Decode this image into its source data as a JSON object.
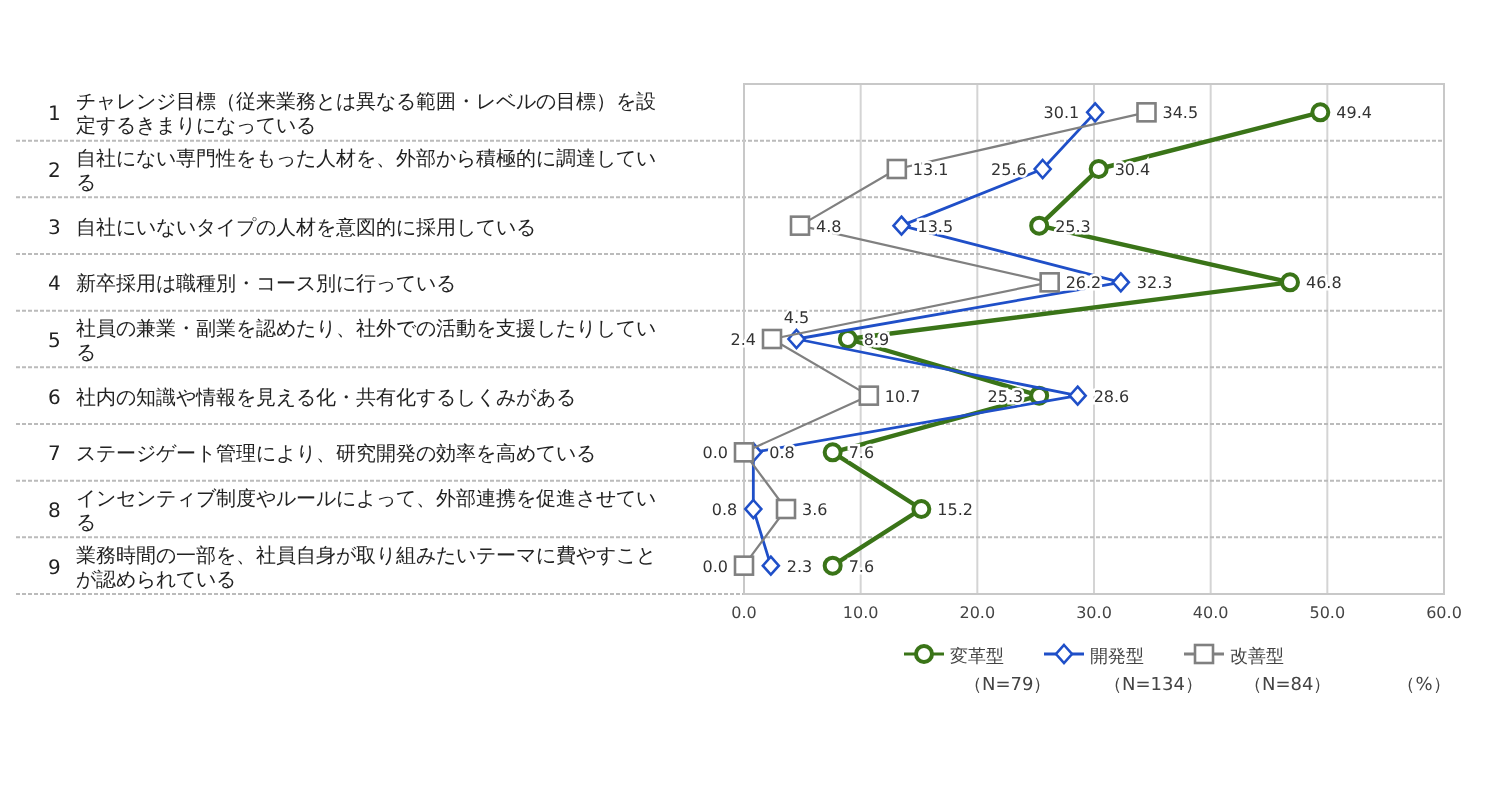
{
  "chart_data": {
    "type": "line",
    "orientation": "horizontal",
    "categories": [
      "1 チャレンジ目標（従来業務とは異なる範囲・レベルの目標）を設定するきまりになっている",
      "2 自社にない専門性をもった人材を、外部から積極的に調達している",
      "3 自社にいないタイプの人材を意図的に採用している",
      "4 新卒採用は職種別・コース別に行っている",
      "5 社員の兼業・副業を認めたり、社外での活動を支援したりしている",
      "6 社内の知識や情報を見える化・共有化するしくみがある",
      "7 ステージゲート管理により、研究開発の効率を高めている",
      "8 インセンティブ制度やルールによって、外部連携を促進させている",
      "9 業務時間の一部を、社員自身が取り組みたいテーマに費やすことが認められている"
    ],
    "series": [
      {
        "name": "変革型（N=79）",
        "color": "#3a7418",
        "marker": "circle",
        "values": [
          49.4,
          30.4,
          25.3,
          46.8,
          8.9,
          25.3,
          7.6,
          15.2,
          7.6
        ]
      },
      {
        "name": "開発型（N=134）",
        "color": "#1f4fc8",
        "marker": "diamond",
        "values": [
          30.1,
          25.6,
          13.5,
          32.3,
          4.5,
          28.6,
          0.8,
          0.8,
          2.3
        ]
      },
      {
        "name": "改善型（N=84）",
        "color": "#808080",
        "marker": "square",
        "values": [
          34.5,
          13.1,
          4.8,
          26.2,
          2.4,
          10.7,
          0.0,
          3.6,
          0.0
        ],
        "value_labels": [
          "34.5",
          "13.1",
          "4.8",
          "26.2",
          "2.4",
          "10.7",
          "0.0",
          "3.6",
          "0.0"
        ]
      }
    ],
    "xlim": [
      0,
      60
    ],
    "xticks": [
      {
        "value": 0,
        "label": "0.0"
      },
      {
        "value": 10,
        "label": "10.0"
      },
      {
        "value": 20,
        "label": "20.0"
      },
      {
        "value": 30,
        "label": "30.0"
      },
      {
        "value": 40,
        "label": "40.0"
      },
      {
        "value": 50,
        "label": "50.0"
      },
      {
        "value": 60,
        "label": "60.0"
      }
    ],
    "xlabel": "（%）",
    "data_labels": true,
    "grid": true,
    "legend": "bottom"
  }
}
